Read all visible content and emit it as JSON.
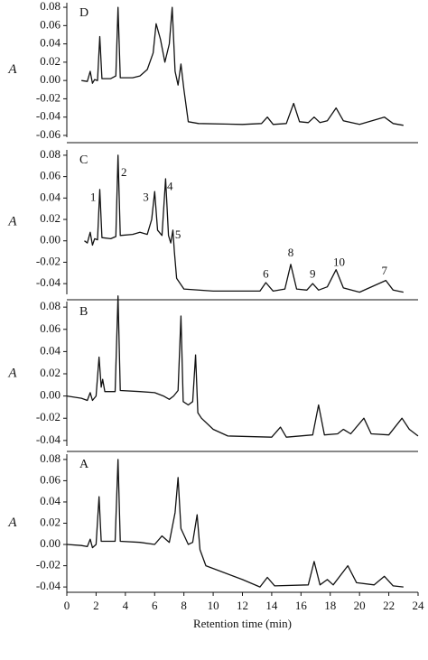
{
  "chart_data": [
    {
      "type": "line",
      "label": "D",
      "ylabel": "A",
      "color": "#111111",
      "xlim": [
        0,
        24
      ],
      "ylim": [
        -0.062,
        0.085
      ],
      "yticks": [
        0.08,
        0.06,
        0.04,
        0.02,
        {
          "value": 0,
          "label": "0.00"
        },
        -0.02,
        -0.04,
        -0.06
      ],
      "x": [
        1.0,
        1.4,
        1.6,
        1.75,
        1.9,
        2.1,
        2.25,
        2.4,
        3.0,
        3.35,
        3.5,
        3.65,
        4.5,
        5.0,
        5.5,
        5.9,
        6.1,
        6.4,
        6.7,
        7.0,
        7.2,
        7.4,
        7.6,
        7.8,
        8.0,
        8.3,
        9,
        12,
        13.3,
        13.7,
        14.1,
        15.0,
        15.5,
        15.9,
        16.5,
        16.9,
        17.3,
        17.8,
        18.4,
        18.9,
        20,
        21.7,
        22.3,
        23
      ],
      "values": [
        0.0,
        -0.001,
        0.01,
        -0.003,
        0.001,
        0.0,
        0.048,
        0.002,
        0.002,
        0.005,
        0.08,
        0.003,
        0.003,
        0.005,
        0.012,
        0.03,
        0.062,
        0.045,
        0.02,
        0.04,
        0.08,
        0.01,
        -0.005,
        0.018,
        -0.01,
        -0.045,
        -0.047,
        -0.048,
        -0.047,
        -0.04,
        -0.048,
        -0.047,
        -0.025,
        -0.045,
        -0.046,
        -0.04,
        -0.046,
        -0.044,
        -0.03,
        -0.044,
        -0.048,
        -0.04,
        -0.047,
        -0.049
      ]
    },
    {
      "type": "line",
      "label": "C",
      "ylabel": "A",
      "color": "#111111",
      "xlim": [
        0,
        24
      ],
      "ylim": [
        -0.05,
        0.085
      ],
      "yticks": [
        0.08,
        0.06,
        0.04,
        0.02,
        {
          "value": 0,
          "label": "0.00"
        },
        -0.02,
        -0.04
      ],
      "x": [
        1.2,
        1.4,
        1.6,
        1.75,
        1.9,
        2.1,
        2.25,
        2.4,
        3.0,
        3.35,
        3.5,
        3.65,
        4.5,
        5.0,
        5.5,
        5.8,
        6.0,
        6.2,
        6.5,
        6.75,
        6.95,
        7.1,
        7.25,
        7.35,
        7.5,
        8,
        10,
        13.2,
        13.6,
        14.1,
        14.9,
        15.3,
        15.7,
        16.4,
        16.8,
        17.2,
        17.8,
        18.4,
        18.9,
        20,
        21.8,
        22.3,
        23
      ],
      "values": [
        0.0,
        -0.002,
        0.008,
        -0.004,
        0.002,
        0.001,
        0.048,
        0.003,
        0.002,
        0.004,
        0.08,
        0.005,
        0.006,
        0.008,
        0.006,
        0.02,
        0.046,
        0.01,
        0.005,
        0.058,
        0.005,
        -0.002,
        0.01,
        -0.01,
        -0.035,
        -0.045,
        -0.047,
        -0.047,
        -0.039,
        -0.047,
        -0.045,
        -0.022,
        -0.045,
        -0.046,
        -0.04,
        -0.046,
        -0.043,
        -0.027,
        -0.044,
        -0.048,
        -0.037,
        -0.046,
        -0.048
      ],
      "annotations": [
        {
          "text": "1",
          "x": 1.8,
          "y": 0.04
        },
        {
          "text": "2",
          "x": 3.9,
          "y": 0.063
        },
        {
          "text": "3",
          "x": 5.4,
          "y": 0.04
        },
        {
          "text": "4",
          "x": 7.05,
          "y": 0.05
        },
        {
          "text": "5",
          "x": 7.6,
          "y": 0.005
        },
        {
          "text": "6",
          "x": 13.6,
          "y": -0.032
        },
        {
          "text": "8",
          "x": 15.3,
          "y": -0.012
        },
        {
          "text": "9",
          "x": 16.8,
          "y": -0.032
        },
        {
          "text": "10",
          "x": 18.6,
          "y": -0.021
        },
        {
          "text": "7",
          "x": 21.7,
          "y": -0.029
        }
      ]
    },
    {
      "type": "line",
      "label": "B",
      "ylabel": "A",
      "color": "#111111",
      "xlim": [
        0,
        24
      ],
      "ylim": [
        -0.045,
        0.085
      ],
      "yticks": [
        0.08,
        0.06,
        0.04,
        0.02,
        {
          "value": 0,
          "label": "0.00"
        },
        -0.02,
        -0.04
      ],
      "x": [
        0,
        1.0,
        1.4,
        1.6,
        1.75,
        2.0,
        2.2,
        2.35,
        2.45,
        2.6,
        3.3,
        3.5,
        3.65,
        5,
        6.0,
        6.6,
        7.0,
        7.3,
        7.6,
        7.8,
        7.95,
        8.3,
        8.6,
        8.8,
        8.95,
        9.2,
        10,
        11,
        14,
        14.6,
        15,
        16.8,
        17.2,
        17.6,
        18.5,
        18.9,
        19.4,
        20.3,
        20.8,
        22,
        22.9,
        23.4,
        24
      ],
      "values": [
        0,
        -0.002,
        -0.004,
        0.003,
        -0.004,
        0.0,
        0.035,
        0.008,
        0.015,
        0.004,
        0.004,
        0.09,
        0.005,
        0.004,
        0.003,
        0.0,
        -0.003,
        0.0,
        0.005,
        0.072,
        -0.005,
        -0.008,
        -0.005,
        0.037,
        -0.015,
        -0.02,
        -0.03,
        -0.036,
        -0.037,
        -0.028,
        -0.037,
        -0.035,
        -0.008,
        -0.035,
        -0.034,
        -0.03,
        -0.034,
        -0.02,
        -0.034,
        -0.035,
        -0.02,
        -0.03,
        -0.036
      ]
    },
    {
      "type": "line",
      "label": "A",
      "ylabel": "A",
      "color": "#111111",
      "xlabel": "Retention time (min)",
      "xlim": [
        0,
        24
      ],
      "xticks": [
        0,
        2,
        4,
        6,
        8,
        10,
        12,
        14,
        16,
        18,
        20,
        22,
        24
      ],
      "ylim": [
        -0.045,
        0.085
      ],
      "yticks": [
        0.08,
        0.06,
        0.04,
        0.02,
        {
          "value": 0,
          "label": "0.00"
        },
        -0.02,
        -0.04
      ],
      "x": [
        0,
        1.0,
        1.4,
        1.6,
        1.75,
        2.0,
        2.2,
        2.35,
        3.3,
        3.5,
        3.65,
        5,
        6.0,
        6.5,
        7.0,
        7.4,
        7.6,
        7.8,
        8.3,
        8.6,
        8.9,
        9.1,
        9.5,
        12,
        13.2,
        13.7,
        14.2,
        16.5,
        16.9,
        17.3,
        17.8,
        18.2,
        19.2,
        19.8,
        21,
        21.7,
        22.3,
        23
      ],
      "values": [
        0,
        -0.001,
        -0.002,
        0.005,
        -0.003,
        0.0,
        0.045,
        0.003,
        0.003,
        0.08,
        0.003,
        0.002,
        0.0,
        0.008,
        0.002,
        0.03,
        0.063,
        0.015,
        0.0,
        0.002,
        0.028,
        -0.005,
        -0.02,
        -0.033,
        -0.04,
        -0.031,
        -0.039,
        -0.038,
        -0.016,
        -0.038,
        -0.033,
        -0.038,
        -0.02,
        -0.036,
        -0.038,
        -0.03,
        -0.039,
        -0.04
      ]
    }
  ]
}
